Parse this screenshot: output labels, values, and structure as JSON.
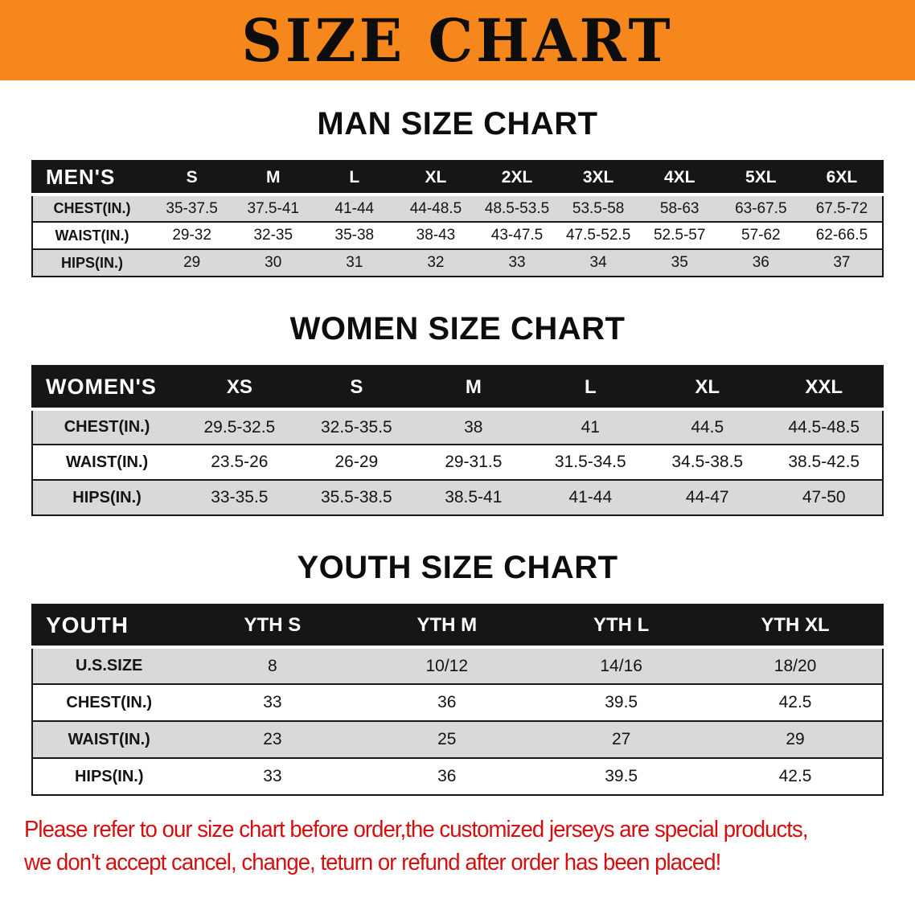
{
  "banner": {
    "title": "SIZE CHART"
  },
  "sections": [
    {
      "heading": "MAN SIZE CHART",
      "table": {
        "header": [
          "MEN'S",
          "S",
          "M",
          "L",
          "XL",
          "2XL",
          "3XL",
          "4XL",
          "5XL",
          "6XL"
        ],
        "rows": [
          [
            "CHEST(IN.)",
            "35-37.5",
            "37.5-41",
            "41-44",
            "44-48.5",
            "48.5-53.5",
            "53.5-58",
            "58-63",
            "63-67.5",
            "67.5-72"
          ],
          [
            "WAIST(IN.)",
            "29-32",
            "32-35",
            "35-38",
            "38-43",
            "43-47.5",
            "47.5-52.5",
            "52.5-57",
            "57-62",
            "62-66.5"
          ],
          [
            "HIPS(IN.)",
            "29",
            "30",
            "31",
            "32",
            "33",
            "34",
            "35",
            "36",
            "37"
          ]
        ]
      }
    },
    {
      "heading": "WOMEN SIZE CHART",
      "table": {
        "header": [
          "WOMEN'S",
          "XS",
          "S",
          "M",
          "L",
          "XL",
          "XXL"
        ],
        "rows": [
          [
            "CHEST(IN.)",
            "29.5-32.5",
            "32.5-35.5",
            "38",
            "41",
            "44.5",
            "44.5-48.5"
          ],
          [
            "WAIST(IN.)",
            "23.5-26",
            "26-29",
            "29-31.5",
            "31.5-34.5",
            "34.5-38.5",
            "38.5-42.5"
          ],
          [
            "HIPS(IN.)",
            "33-35.5",
            "35.5-38.5",
            "38.5-41",
            "41-44",
            "44-47",
            "47-50"
          ]
        ]
      }
    },
    {
      "heading": "YOUTH SIZE CHART",
      "table": {
        "header": [
          "YOUTH",
          "YTH S",
          "YTH M",
          "YTH L",
          "YTH XL"
        ],
        "rows": [
          [
            "U.S.SIZE",
            "8",
            "10/12",
            "14/16",
            "18/20"
          ],
          [
            "CHEST(IN.)",
            "33",
            "36",
            "39.5",
            "42.5"
          ],
          [
            "WAIST(IN.)",
            "23",
            "25",
            "27",
            "29"
          ],
          [
            "HIPS(IN.)",
            "33",
            "36",
            "39.5",
            "42.5"
          ]
        ]
      }
    }
  ],
  "disclaimer": {
    "lines": [
      "Please refer to our size chart before order,the customized jerseys are special products,",
      "we don't accept cancel, change, teturn or refund after order has been placed!"
    ]
  },
  "colors": {
    "banner_bg": "#f6871d",
    "header_bg": "#161616",
    "stripe": "#d9d9d9",
    "disclaimer_text": "#d40f0f"
  }
}
